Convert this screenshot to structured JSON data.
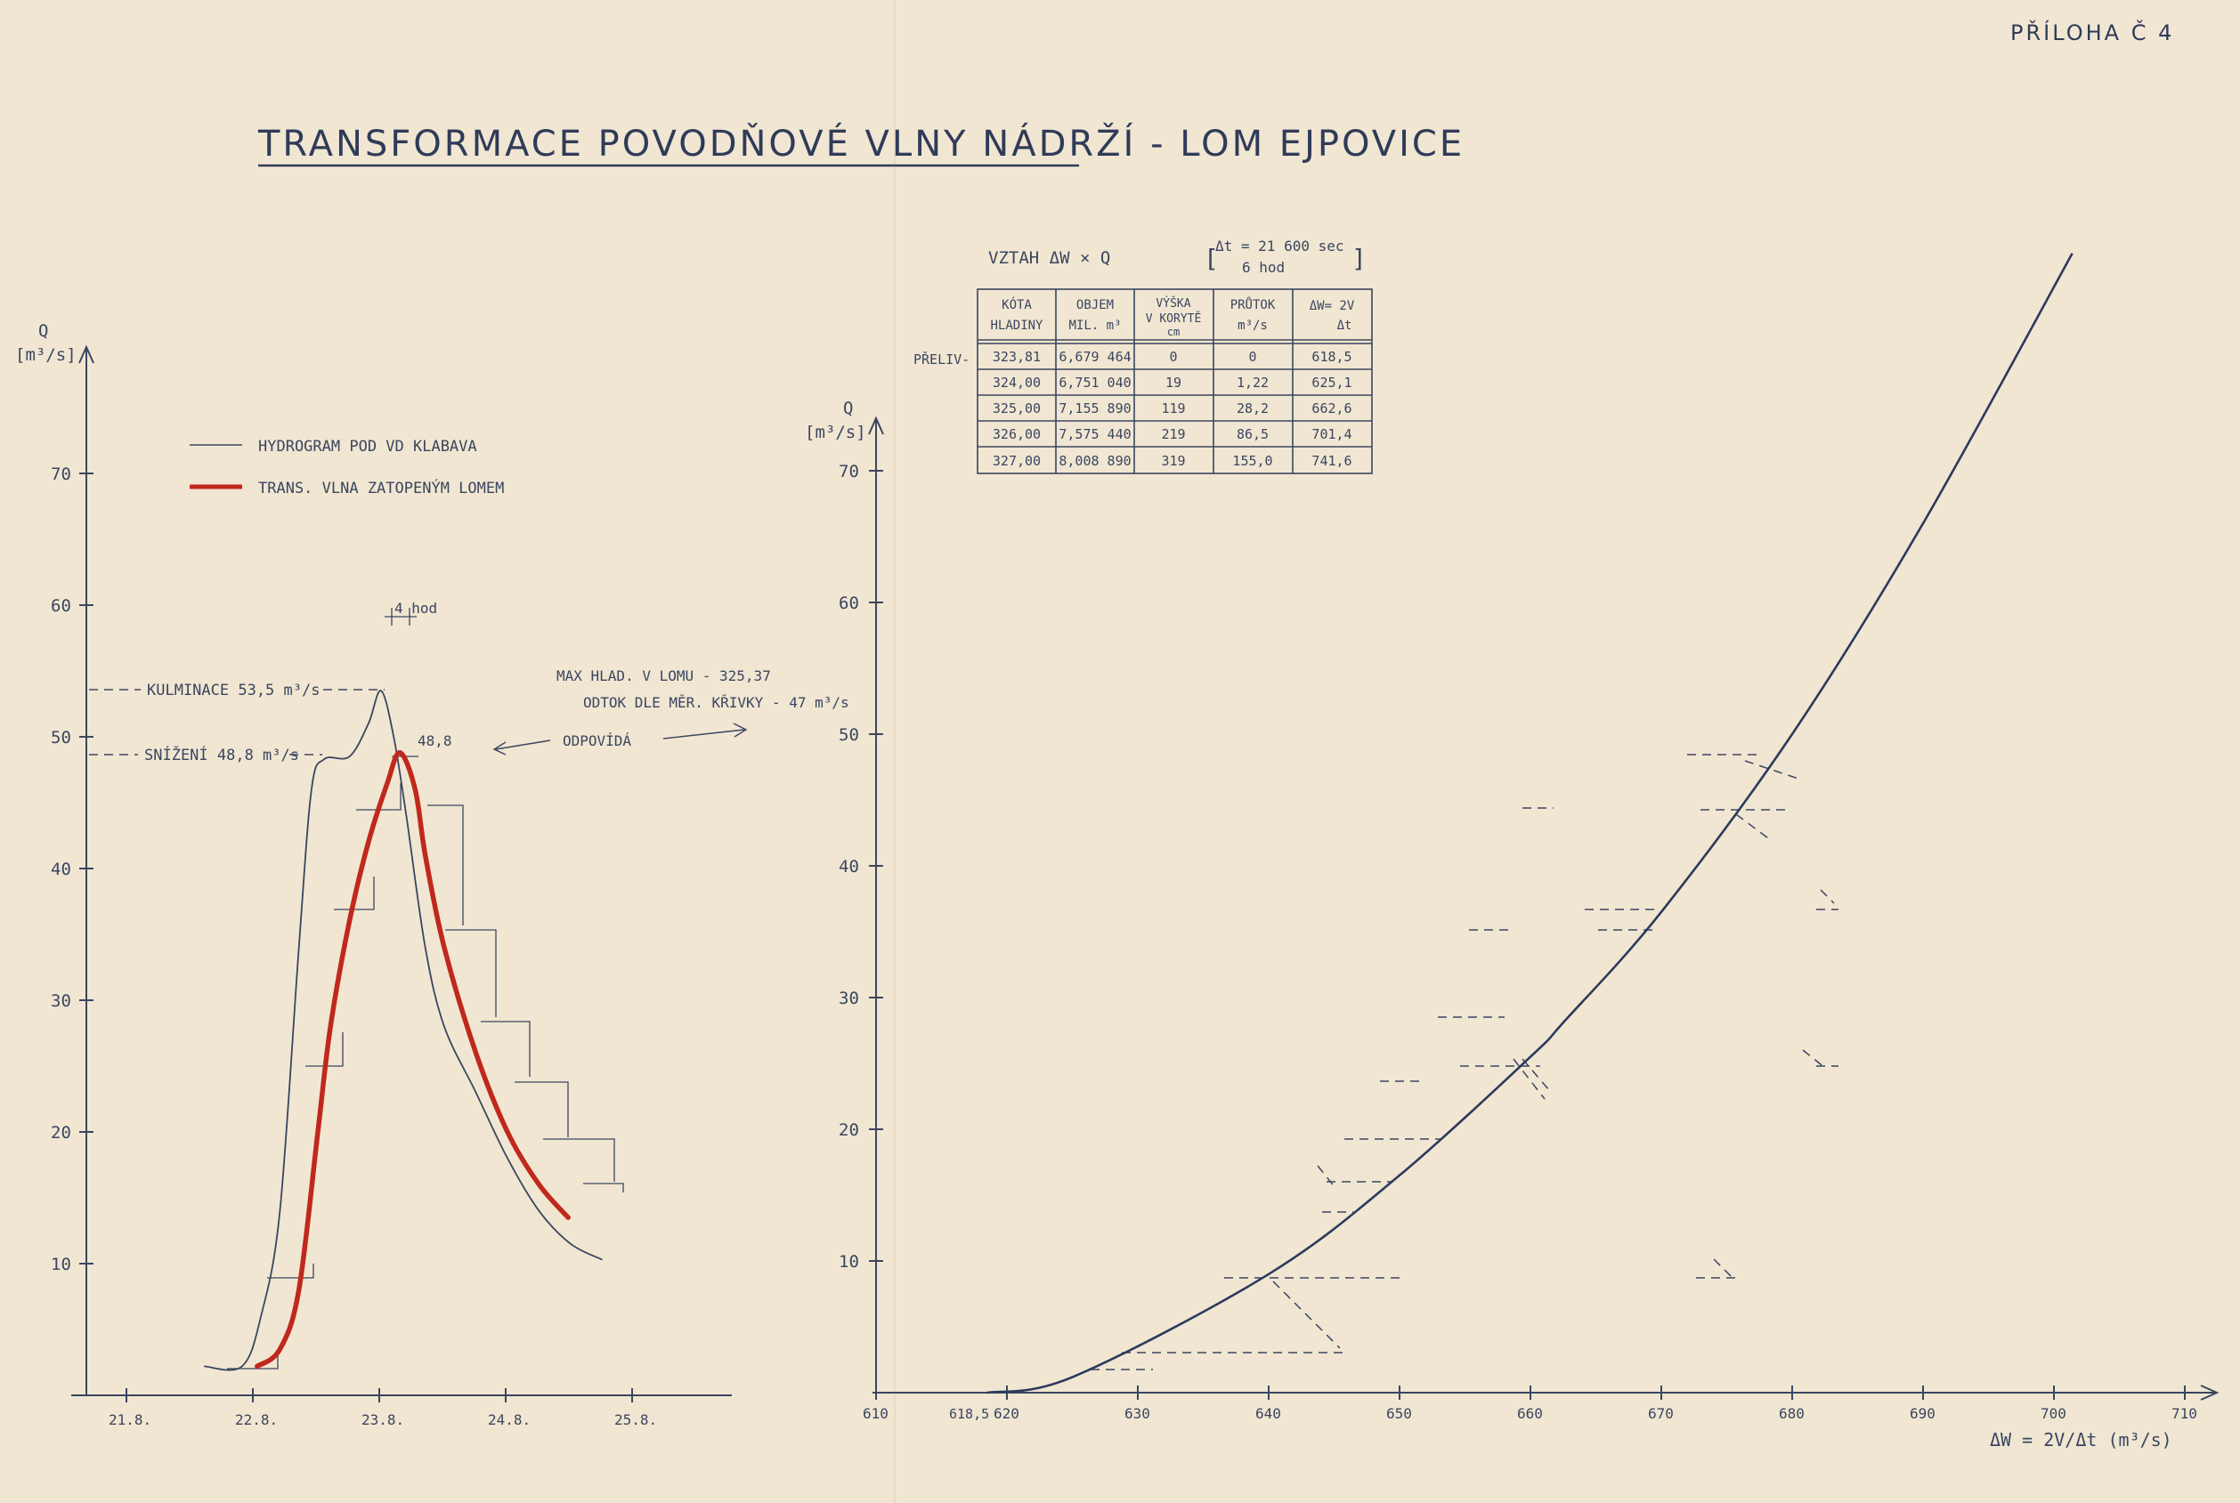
{
  "header": {
    "annex": "PŘÍLOHA Č 4",
    "title": "TRANSFORMACE POVODŇOVÉ VLNY NÁDRŽÍ - LOM EJPOVICE"
  },
  "colors": {
    "ink": "#3a4660",
    "red": "#c0281c",
    "paper": "#f1e6d2"
  },
  "chart_data": [
    {
      "type": "line",
      "ylabel": "Q",
      "yunit": "[m³/s]",
      "ylim": [
        0,
        78
      ],
      "y_ticks": [
        "10",
        "20",
        "30",
        "40",
        "50",
        "60",
        "70"
      ],
      "y_tick_values": [
        10,
        20,
        30,
        40,
        50,
        60,
        70
      ],
      "x_tick_labels": [
        "21.8.",
        "22.8.",
        "23.8.",
        "24.8.",
        "25.8."
      ],
      "legend": [
        "HYDROGRAM POD VD KLABAVA",
        "TRANS. VLNA ZATOPENÝM LOMEM"
      ],
      "series": [
        {
          "name": "HYDROGRAM POD VD KLABAVA",
          "color": "#3a4660",
          "points": [
            [
              21.6,
              2.2
            ],
            [
              21.9,
              2.2
            ],
            [
              22.05,
              6
            ],
            [
              22.2,
              14
            ],
            [
              22.35,
              34
            ],
            [
              22.45,
              46
            ],
            [
              22.55,
              48.3
            ],
            [
              22.75,
              48.5
            ],
            [
              22.9,
              51
            ],
            [
              23.0,
              53.5
            ],
            [
              23.1,
              50
            ],
            [
              23.2,
              44
            ],
            [
              23.35,
              34
            ],
            [
              23.5,
              28
            ],
            [
              23.75,
              23
            ],
            [
              24.0,
              18
            ],
            [
              24.25,
              14
            ],
            [
              24.5,
              11.5
            ],
            [
              24.75,
              10.3
            ]
          ]
        },
        {
          "name": "TRANS. VLNA ZATOPENÝM LOMEM",
          "color": "#c0281c",
          "points": [
            [
              22.02,
              2.2
            ],
            [
              22.2,
              3.5
            ],
            [
              22.35,
              8
            ],
            [
              22.5,
              20
            ],
            [
              22.6,
              28
            ],
            [
              22.75,
              36
            ],
            [
              22.9,
              42
            ],
            [
              23.05,
              46.5
            ],
            [
              23.15,
              48.8
            ],
            [
              23.27,
              46
            ],
            [
              23.35,
              41
            ],
            [
              23.5,
              34
            ],
            [
              23.75,
              26
            ],
            [
              24.0,
              20
            ],
            [
              24.25,
              16
            ],
            [
              24.48,
              13.5
            ]
          ]
        }
      ],
      "annotations": {
        "time_step": "4 hod",
        "culmination": "KULMINACE 53,5 m³/s",
        "reduction": "SNÍŽENÍ 48,8 m³/s",
        "peak_value": "48,8",
        "note_line1": "MAX HLAD. V LOMU - 325,37",
        "note_line2": "ODTOK DLE MĚR. KŘIVKY - 47 m³/s",
        "corresponds": "ODPOVÍDÁ"
      }
    },
    {
      "type": "line",
      "ylabel": "Q",
      "yunit": "[m³/s]",
      "xlabel": "ΔW = 2V/Δt (m³/s)",
      "xlim": [
        610,
        712
      ],
      "ylim": [
        0,
        78
      ],
      "x_ticks": [
        "610",
        "620",
        "630",
        "640",
        "650",
        "660",
        "670",
        "680",
        "690",
        "700",
        "710"
      ],
      "x_tick_values": [
        610,
        620,
        630,
        640,
        650,
        660,
        670,
        680,
        690,
        700,
        710
      ],
      "y_ticks": [
        "10",
        "20",
        "30",
        "40",
        "50",
        "60",
        "70"
      ],
      "y_tick_values": [
        10,
        20,
        30,
        40,
        50,
        60,
        70
      ],
      "origin_label": "618,5",
      "series": [
        {
          "name": "",
          "points": [
            [
              618.5,
              0
            ],
            [
              625.1,
              1.22
            ],
            [
              640,
              9
            ],
            [
              650,
              16.5
            ],
            [
              660,
              25.5
            ],
            [
              662.6,
              28.2
            ],
            [
              670,
              36.5
            ],
            [
              680,
              50
            ],
            [
              690,
              66
            ],
            [
              701.4,
              86.5
            ]
          ]
        }
      ]
    }
  ],
  "table": {
    "caption_left": "VZTAH   ΔW × Q",
    "caption_dt": "Δt = 21 600 sec",
    "caption_hours": "6 hod",
    "headers": [
      [
        "KÓTA",
        "HLADINY"
      ],
      [
        "OBJEM",
        "MIL. m³"
      ],
      [
        "VÝŠKA",
        "V KORYTĚ",
        "cm"
      ],
      [
        "PRŮTOK",
        "m³/s"
      ],
      [
        "ΔW= 2V",
        "Δt"
      ]
    ],
    "row_label": "PŘELIV-",
    "rows": [
      [
        "323,81",
        "6,679 464",
        "0",
        "0",
        "618,5"
      ],
      [
        "324,00",
        "6,751 040",
        "19",
        "1,22",
        "625,1"
      ],
      [
        "325,00",
        "7,155 890",
        "119",
        "28,2",
        "662,6"
      ],
      [
        "326,00",
        "7,575 440",
        "219",
        "86,5",
        "701,4"
      ],
      [
        "327,00",
        "8,008 890",
        "319",
        "155,0",
        "741,6"
      ]
    ]
  }
}
